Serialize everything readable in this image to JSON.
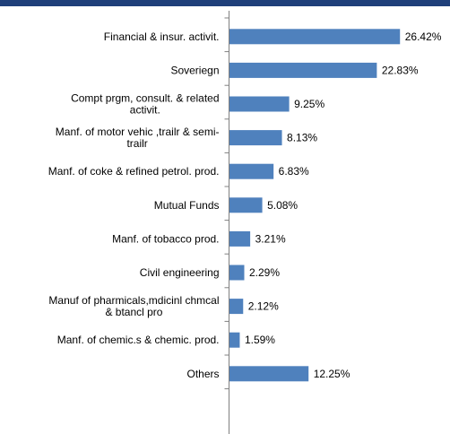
{
  "colors": {
    "bar": "#4f81bd",
    "axis": "#808080",
    "header": "#1f3f7a"
  },
  "chart_data": {
    "type": "bar",
    "orientation": "horizontal",
    "categories": [
      "Financial & insur. activit.",
      "Soveriegn",
      "Compt prgm, consult. & related activit.",
      "Manf. of motor vehic ,trailr & semi-trailr",
      "Manf. of coke & refined petrol. prod.",
      "Mutual Funds",
      "Manf. of tobacco prod.",
      "Civil engineering",
      "Manuf of pharmicals,mdicinl chmcal & btancl pro",
      "Manf. of chemic.s & chemic. prod.",
      "Others"
    ],
    "category_lines": [
      [
        "Financial & insur. activit."
      ],
      [
        "Soveriegn"
      ],
      [
        "Compt prgm, consult. & related",
        "activit."
      ],
      [
        "Manf. of motor vehic ,trailr & semi-",
        "trailr"
      ],
      [
        "Manf. of coke & refined petrol. prod."
      ],
      [
        "Mutual Funds"
      ],
      [
        "Manf. of tobacco prod."
      ],
      [
        "Civil engineering"
      ],
      [
        "Manuf of pharmicals,mdicinl chmcal",
        "& btancl pro"
      ],
      [
        "Manf. of chemic.s & chemic. prod."
      ],
      [
        "Others"
      ]
    ],
    "values": [
      26.42,
      22.83,
      9.25,
      8.13,
      6.83,
      5.08,
      3.21,
      2.29,
      2.12,
      1.59,
      12.25
    ],
    "value_labels": [
      "26.42%",
      "22.83%",
      "9.25%",
      "8.13%",
      "6.83%",
      "5.08%",
      "3.21%",
      "2.29%",
      "2.12%",
      "1.59%",
      "12.25%"
    ],
    "xlim": [
      0,
      30
    ],
    "grid": false,
    "legend": "none",
    "title": "",
    "xlabel": "",
    "ylabel": ""
  }
}
